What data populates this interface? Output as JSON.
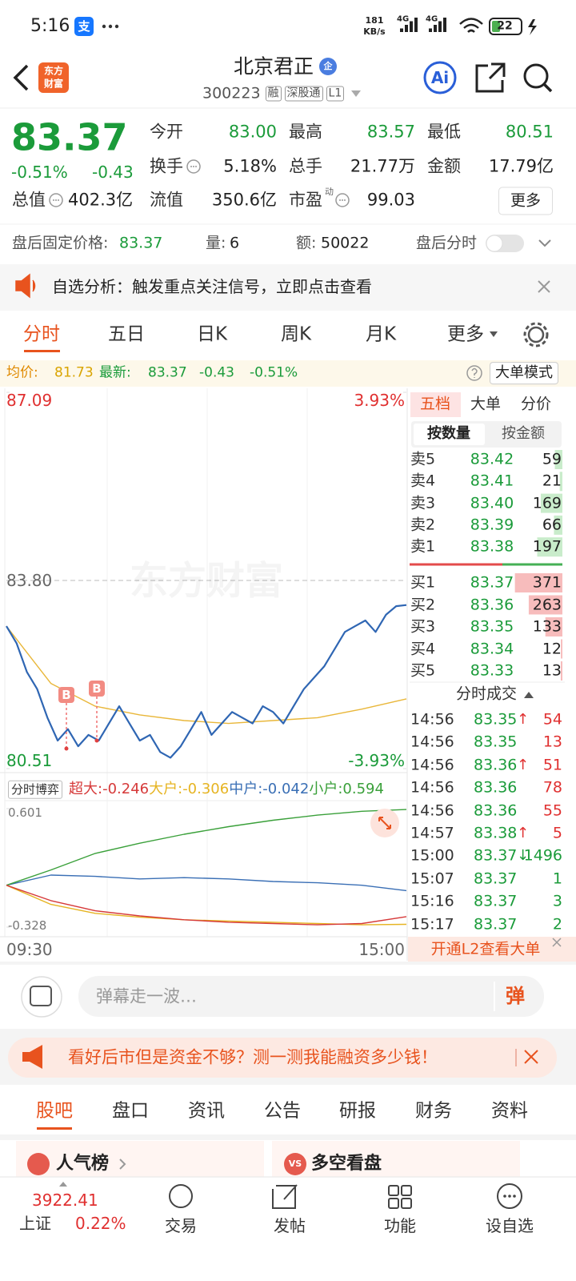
{
  "status": {
    "time": "5:16",
    "app": "支",
    "speed": "181",
    "speed_unit": "KB/s",
    "net1": "4G",
    "net2": "4G",
    "battery": "22"
  },
  "header": {
    "logo_top": "东方",
    "logo_bottom": "财富",
    "title": "北京君正",
    "badge": "企",
    "code": "300223",
    "tags": [
      "融",
      "深股通",
      "L1"
    ],
    "ai": "Ai"
  },
  "quote": {
    "price": "83.37",
    "pct": "-0.51%",
    "change": "-0.43",
    "fields": [
      {
        "label": "今开",
        "value": "83.00"
      },
      {
        "label": "最高",
        "value": "83.57"
      },
      {
        "label": "最低",
        "value": "80.51"
      },
      {
        "label": "换手",
        "value": "5.18%"
      },
      {
        "label": "总手",
        "value": "21.77万"
      },
      {
        "label": "金额",
        "value": "17.79亿"
      },
      {
        "label": "总值",
        "value": "402.3亿"
      },
      {
        "label": "流值",
        "value": "350.6亿"
      },
      {
        "label": "市盈",
        "sup": "动",
        "value": "99.03"
      }
    ],
    "more": "更多"
  },
  "after_hours": {
    "label": "盘后固定价格:",
    "price": "83.37",
    "vol_label": "量:",
    "vol": "6",
    "amount_label": "额:",
    "amount": "50022",
    "toggle": "盘后分时"
  },
  "notice": "自选分析：触发重点关注信号，立即点击查看",
  "tabs": [
    "分时",
    "五日",
    "日K",
    "周K",
    "月K",
    "更多"
  ],
  "info_bar": {
    "avg_label": "均价:",
    "avg": "81.73",
    "last_label": "最新:",
    "last": "83.37",
    "change": "-0.43",
    "pct": "-0.51%",
    "mode": "大单模式"
  },
  "chart_data": [
    {
      "type": "line",
      "watermark": "东方财富",
      "ylim": [
        80.51,
        87.09
      ],
      "yticks": [
        87.09,
        {
          "value": 83.8,
          "label": "83.80"
        },
        80.51
      ],
      "y2lim": [
        -3.93,
        3.93
      ],
      "y2ticks": [
        {
          "value": 3.93,
          "label": "3.93%"
        },
        {
          "value": -3.93,
          "label": "-3.93%"
        }
      ],
      "series": [
        {
          "color": "#2f66b3",
          "values": [
            83.0,
            82.7,
            82.2,
            81.9,
            81.4,
            81.0,
            81.2,
            80.9,
            81.1,
            81.0,
            81.3,
            81.6,
            81.3,
            81.0,
            81.1,
            80.8,
            80.7,
            80.9,
            81.2,
            81.5,
            81.1,
            81.3,
            81.5,
            81.4,
            81.3,
            81.6,
            81.5,
            81.3,
            81.6,
            81.9,
            82.1,
            82.3,
            82.6,
            82.9,
            83.0,
            83.1,
            82.9,
            83.2,
            83.35,
            83.37
          ]
        },
        {
          "color": "#e9b73a",
          "values": [
            83.0,
            82.0,
            81.6,
            81.45,
            81.35,
            81.3,
            81.35,
            81.4,
            81.55,
            81.73
          ]
        }
      ],
      "markers": [
        "B",
        "B"
      ]
    },
    {
      "type": "line",
      "label": "分时博弈",
      "ylim": [
        -0.328,
        0.601
      ],
      "yticks": [
        0.601,
        -0.328
      ],
      "x_labels": [
        "09:30",
        "15:00"
      ],
      "series": [
        {
          "name": "超大:",
          "color": "#d63a3a",
          "values": [
            0,
            -0.12,
            -0.2,
            -0.24,
            -0.27,
            -0.29,
            -0.3,
            -0.31,
            -0.3,
            -0.246
          ]
        },
        {
          "name": "大户:",
          "color": "#e6b422",
          "values": [
            0,
            -0.15,
            -0.22,
            -0.25,
            -0.27,
            -0.28,
            -0.29,
            -0.3,
            -0.31,
            -0.306
          ]
        },
        {
          "name": "中户:",
          "color": "#3a6fb5",
          "values": [
            0,
            0.08,
            0.07,
            0.05,
            0.06,
            0.05,
            0.03,
            0.02,
            0.0,
            -0.042
          ]
        },
        {
          "name": "小户:",
          "color": "#3aa03a",
          "values": [
            0,
            0.12,
            0.25,
            0.33,
            0.4,
            0.46,
            0.51,
            0.55,
            0.58,
            0.594
          ]
        }
      ]
    }
  ],
  "order_book": {
    "tabs": [
      "五档",
      "大单",
      "分价"
    ],
    "subtabs": [
      "按数量",
      "按金额"
    ],
    "asks": [
      {
        "label": "卖5",
        "price": "83.42",
        "vol": 59
      },
      {
        "label": "卖4",
        "price": "83.41",
        "vol": 21
      },
      {
        "label": "卖3",
        "price": "83.40",
        "vol": 169
      },
      {
        "label": "卖2",
        "price": "83.39",
        "vol": 66
      },
      {
        "label": "卖1",
        "price": "83.38",
        "vol": 197
      }
    ],
    "bids": [
      {
        "label": "买1",
        "price": "83.37",
        "vol": 371
      },
      {
        "label": "买2",
        "price": "83.36",
        "vol": 263
      },
      {
        "label": "买3",
        "price": "83.35",
        "vol": 133
      },
      {
        "label": "买4",
        "price": "83.34",
        "vol": 12
      },
      {
        "label": "买5",
        "price": "83.33",
        "vol": 13
      }
    ],
    "trades_title": "分时成交",
    "trades": [
      {
        "time": "14:56",
        "price": "83.35",
        "dir": "↑",
        "vol": 54,
        "color": "#e03030"
      },
      {
        "time": "14:56",
        "price": "83.35",
        "vol": 13,
        "color": "#e03030"
      },
      {
        "time": "14:56",
        "price": "83.36",
        "dir": "↑",
        "vol": 51,
        "color": "#e03030"
      },
      {
        "time": "14:56",
        "price": "83.36",
        "vol": 78,
        "color": "#e03030"
      },
      {
        "time": "14:56",
        "price": "83.36",
        "vol": 55,
        "color": "#e03030"
      },
      {
        "time": "14:57",
        "price": "83.38",
        "dir": "↑",
        "vol": 5,
        "color": "#e03030"
      },
      {
        "time": "15:00",
        "price": "83.37",
        "dir": "↓",
        "vol": 1496,
        "color": "#1b9b3a"
      },
      {
        "time": "15:07",
        "price": "83.37",
        "vol": 1,
        "color": "#1b9b3a"
      },
      {
        "time": "15:16",
        "price": "83.37",
        "vol": 3,
        "color": "#1b9b3a"
      },
      {
        "time": "15:17",
        "price": "83.37",
        "vol": 2,
        "color": "#1b9b3a"
      }
    ],
    "l2": "开通L2查看大单"
  },
  "comment": {
    "placeholder": "弹幕走一波…",
    "button": "弹"
  },
  "ad": "看好后市但是资金不够？测一测我能融资多少钱！",
  "sections": [
    "股吧",
    "盘口",
    "资讯",
    "公告",
    "研报",
    "财务",
    "资料"
  ],
  "cards": {
    "popular": "人气榜",
    "vs_icon": "VS",
    "versus": "多空看盘"
  },
  "nav": {
    "index": "3922.41",
    "index_name": "上证",
    "index_pct": "0.22%",
    "items": [
      "交易",
      "发帖",
      "功能",
      "设自选"
    ]
  }
}
